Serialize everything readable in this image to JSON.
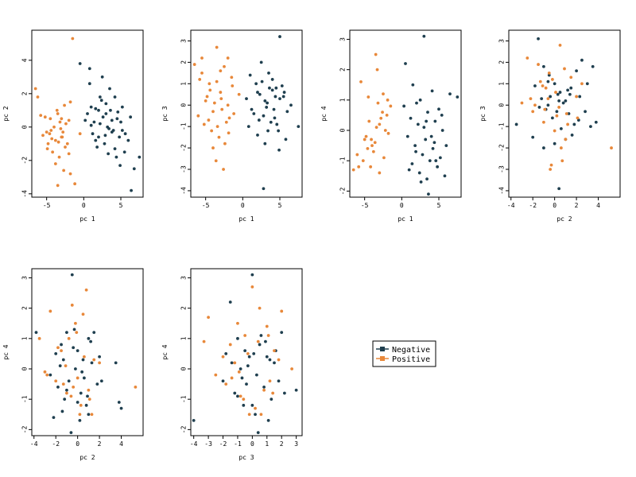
{
  "colors": {
    "negative": "#1f3f4f",
    "positive": "#e8883a"
  },
  "legend": {
    "placement": "center",
    "items": [
      {
        "label": "Negative",
        "color": "#1f3f4f"
      },
      {
        "label": "Positive",
        "color": "#e8883a"
      }
    ]
  },
  "chart_data": [
    {
      "type": "scatter",
      "title": "",
      "xlabel": "pc 1",
      "ylabel": "pc 2",
      "xlim": [
        -7,
        8
      ],
      "ylim": [
        -4.2,
        5.8
      ],
      "xticks": [
        -5,
        0,
        5
      ],
      "yticks": [
        -4,
        -2,
        0,
        2,
        4
      ],
      "series": [
        {
          "name": "Negative",
          "x": [
            -0.5,
            0.8,
            2.5,
            3.5,
            4.2,
            5.2,
            6.3,
            7.5,
            2.0,
            3.0,
            4.5,
            6.8,
            1.2,
            2.2,
            1.6,
            3.8,
            4.8,
            2.8,
            5.5,
            0.2,
            1.0,
            2.6,
            3.2,
            4.0,
            5.0,
            6.0,
            0.5,
            1.8,
            2.4,
            3.6,
            4.4,
            5.6,
            1.4,
            3.0,
            4.6,
            2.0,
            5.2,
            0.8,
            3.4,
            4.2,
            6.4,
            1.0,
            2.2,
            3.8,
            2.9,
            4.9,
            1.6,
            3.3
          ],
          "y": [
            3.8,
            3.5,
            3.0,
            2.3,
            1.8,
            1.2,
            0.6,
            -1.8,
            1.0,
            0.8,
            0.5,
            -2.5,
            -0.4,
            0.2,
            -0.8,
            -0.3,
            -0.6,
            -1.0,
            -1.5,
            0.4,
            1.2,
            0.6,
            0.0,
            -0.2,
            0.3,
            -0.8,
            0.8,
            -1.2,
            1.6,
            1.0,
            -1.8,
            -0.4,
            0.3,
            1.4,
            0.9,
            -0.6,
            -0.2,
            2.6,
            -0.1,
            -1.3,
            -3.8,
            0.1,
            1.8,
            0.4,
            -0.5,
            -2.3,
            1.1,
            -1.6
          ]
        },
        {
          "name": "Positive",
          "x": [
            -1.5,
            -6.5,
            -6.2,
            -4.5,
            -5.0,
            -3.5,
            -3.0,
            -2.5,
            -2.0,
            -4.0,
            -5.5,
            -4.8,
            -3.8,
            -3.2,
            -2.8,
            -4.2,
            -5.2,
            -3.6,
            -2.4,
            -1.8,
            -4.6,
            -3.4,
            -2.6,
            -5.8,
            -4.4,
            -3.0,
            -2.2,
            -3.8,
            -4.9,
            -2.9,
            -3.3,
            -1.2,
            -0.5,
            -2.0,
            -3.1,
            -4.3,
            -1.8,
            -2.7,
            -3.5
          ],
          "y": [
            5.3,
            2.3,
            1.8,
            0.5,
            -0.3,
            0.8,
            -0.6,
            -1.2,
            -1.6,
            0.0,
            -0.5,
            -1.0,
            -0.8,
            0.3,
            -0.3,
            -1.5,
            0.6,
            1.0,
            0.2,
            -2.8,
            -0.4,
            -0.9,
            1.3,
            0.7,
            -0.2,
            0.5,
            -1.0,
            -2.2,
            -1.3,
            -0.6,
            -1.8,
            -3.4,
            -0.4,
            0.4,
            -0.1,
            -0.7,
            1.5,
            -2.6,
            -3.5
          ]
        }
      ]
    },
    {
      "type": "scatter",
      "title": "",
      "xlabel": "pc 1",
      "ylabel": "pc 3",
      "xlim": [
        -7,
        8
      ],
      "ylim": [
        -4.3,
        3.5
      ],
      "xticks": [
        -5,
        0,
        5
      ],
      "yticks": [
        -4,
        -3,
        -2,
        -1,
        0,
        1,
        2,
        3
      ],
      "series": [
        {
          "name": "Negative",
          "x": [
            5.0,
            2.5,
            3.5,
            4.0,
            4.5,
            5.5,
            6.5,
            7.5,
            2.0,
            3.0,
            4.2,
            1.0,
            1.8,
            2.8,
            3.8,
            4.8,
            5.8,
            0.5,
            1.5,
            2.3,
            3.3,
            4.3,
            5.3,
            0.8,
            2.0,
            3.0,
            4.0,
            5.0,
            6.0,
            1.2,
            2.6,
            3.6,
            4.6,
            2.2,
            3.2,
            4.4,
            5.6,
            2.8,
            3.4,
            4.9
          ],
          "y": [
            3.2,
            2.0,
            1.5,
            1.2,
            0.8,
            0.4,
            0.0,
            -1.0,
            0.6,
            0.2,
            -0.2,
            1.4,
            1.0,
            -0.5,
            -0.8,
            -1.2,
            -1.6,
            0.3,
            -0.4,
            0.5,
            0.1,
            -0.6,
            0.9,
            -1.0,
            -1.4,
            -1.8,
            0.7,
            0.3,
            -0.3,
            -0.2,
            1.1,
            0.8,
            -0.9,
            -0.7,
            -0.1,
            0.4,
            0.6,
            -3.9,
            -1.2,
            -2.1
          ]
        },
        {
          "name": "Positive",
          "x": [
            -6.5,
            -5.5,
            -4.5,
            -3.5,
            -2.5,
            -1.5,
            -0.5,
            -5.0,
            -4.0,
            -3.0,
            -2.0,
            -6.0,
            -5.2,
            -4.2,
            -3.2,
            -2.2,
            -1.2,
            -4.8,
            -3.8,
            -2.8,
            -1.8,
            -5.8,
            -4.4,
            -3.4,
            -2.4,
            -1.4,
            -3.6,
            -2.6,
            -4.6,
            -3.0,
            -2.0,
            -4.0,
            -5.5,
            -3.5,
            -2.9,
            -1.9
          ],
          "y": [
            1.9,
            1.5,
            1.0,
            2.7,
            1.8,
            1.3,
            0.5,
            0.2,
            -0.3,
            0.6,
            0.0,
            -0.5,
            -0.9,
            -1.2,
            -1.5,
            -0.8,
            -0.4,
            0.4,
            0.1,
            -0.2,
            -0.6,
            1.2,
            0.7,
            -1.0,
            -1.8,
            0.9,
            -2.6,
            -3.0,
            -0.7,
            1.6,
            2.2,
            -2.0,
            2.2,
            1.1,
            0.3,
            -1.3
          ]
        }
      ]
    },
    {
      "type": "scatter",
      "title": "",
      "xlabel": "pc 1",
      "ylabel": "pc 4",
      "xlim": [
        -7,
        8
      ],
      "ylim": [
        -2.2,
        3.3
      ],
      "xticks": [
        -5,
        0,
        5
      ],
      "yticks": [
        -2,
        -1,
        0,
        1,
        2,
        3
      ],
      "series": [
        {
          "name": "Negative",
          "x": [
            3.0,
            0.5,
            1.5,
            2.5,
            3.5,
            4.5,
            5.5,
            6.5,
            7.5,
            0.8,
            1.8,
            2.8,
            3.8,
            4.8,
            5.8,
            1.2,
            2.2,
            3.2,
            4.2,
            5.2,
            0.3,
            1.4,
            2.4,
            3.4,
            4.4,
            5.4,
            2.0,
            3.0,
            4.0,
            5.0,
            6.0,
            1.0,
            2.6,
            3.6,
            4.6,
            3.3,
            4.1,
            1.9
          ],
          "y": [
            3.1,
            2.2,
            1.5,
            1.0,
            0.6,
            0.3,
            0.0,
            1.2,
            1.1,
            -0.2,
            -0.5,
            -0.8,
            -1.0,
            -1.2,
            -1.5,
            0.4,
            0.2,
            -0.3,
            -0.6,
            -0.9,
            0.8,
            -1.1,
            -1.4,
            -1.6,
            -0.4,
            0.5,
            0.9,
            0.1,
            -0.2,
            0.7,
            -0.5,
            -1.3,
            -1.7,
            -2.1,
            -1.0,
            0.3,
            1.3,
            -0.7
          ]
        },
        {
          "name": "Positive",
          "x": [
            -6.5,
            -5.5,
            -4.5,
            -3.5,
            -2.5,
            -1.5,
            -5.0,
            -4.0,
            -3.0,
            -2.0,
            -6.0,
            -4.8,
            -3.8,
            -2.8,
            -1.8,
            -5.2,
            -4.2,
            -3.2,
            -2.2,
            -4.6,
            -3.6,
            -2.6,
            -3.0,
            -4.4,
            -5.8,
            -3.4,
            -2.4,
            -1.9,
            -4.1,
            -3.3
          ],
          "y": [
            -1.3,
            1.6,
            1.1,
            2.5,
            1.2,
            0.8,
            -0.3,
            -0.5,
            0.2,
            0.5,
            -0.8,
            -0.2,
            -0.7,
            0.4,
            -0.1,
            -1.0,
            -1.2,
            0.9,
            0.0,
            -0.6,
            -0.4,
            0.6,
            -1.4,
            0.3,
            -1.2,
            0.1,
            -0.9,
            1.0,
            -0.3,
            2.0
          ]
        }
      ]
    },
    {
      "type": "scatter",
      "title": "",
      "xlabel": "pc 2",
      "ylabel": "pc 3",
      "xlim": [
        -4.2,
        6.0
      ],
      "ylim": [
        -4.3,
        3.5
      ],
      "xticks": [
        -4,
        -2,
        0,
        2,
        4
      ],
      "yticks": [
        -4,
        -3,
        -2,
        -1,
        0,
        1,
        2,
        3
      ],
      "series": [
        {
          "name": "Negative",
          "x": [
            -1.5,
            -1.0,
            -0.5,
            0.0,
            0.5,
            1.0,
            1.5,
            2.0,
            2.5,
            3.0,
            3.5,
            3.8,
            -3.5,
            -2.0,
            -1.2,
            -0.8,
            -0.2,
            0.3,
            0.8,
            1.3,
            1.8,
            2.3,
            -1.8,
            -0.6,
            0.6,
            1.6,
            2.8,
            -1.4,
            -0.4,
            0.4,
            1.2,
            2.2,
            3.3,
            -1.0,
            0.0,
            1.0,
            0.4,
            -0.6,
            0.2,
            1.4
          ],
          "y": [
            3.1,
            1.8,
            1.4,
            1.0,
            0.6,
            0.2,
            0.8,
            1.6,
            2.1,
            1.0,
            1.8,
            -0.8,
            -0.9,
            -1.5,
            0.3,
            -0.2,
            -0.6,
            0.5,
            0.1,
            -0.4,
            -0.9,
            0.4,
            0.9,
            1.1,
            -1.1,
            -1.4,
            -0.3,
            -0.1,
            0.4,
            0.2,
            0.7,
            -0.7,
            -1.0,
            -2.0,
            -1.8,
            -1.6,
            -3.9,
            0.0,
            -0.3,
            0.5
          ]
        },
        {
          "name": "Positive",
          "x": [
            -2.5,
            -1.5,
            -0.5,
            0.5,
            1.5,
            2.5,
            -3.0,
            -2.0,
            -1.0,
            0.0,
            1.0,
            2.0,
            -0.8,
            0.2,
            1.2,
            -1.3,
            -0.3,
            0.7,
            -1.8,
            -0.9,
            0.1,
            1.1,
            2.1,
            -0.4,
            0.6,
            5.2,
            -2.2,
            -1.1,
            0.9,
            -0.2,
            0.4,
            -0.6
          ],
          "y": [
            2.2,
            1.9,
            1.5,
            2.8,
            1.3,
            1.0,
            0.1,
            -0.3,
            -0.8,
            -1.2,
            -1.6,
            0.4,
            0.8,
            -0.5,
            -0.9,
            1.1,
            -2.8,
            -2.6,
            0.0,
            -0.2,
            0.6,
            -0.4,
            -0.6,
            -3.0,
            -2.0,
            -2.0,
            0.3,
            0.9,
            1.7,
            1.2,
            -0.1,
            0.3
          ]
        }
      ]
    },
    {
      "type": "scatter",
      "title": "",
      "xlabel": "pc 2",
      "ylabel": "pc 4",
      "xlim": [
        -4.2,
        6.0
      ],
      "ylim": [
        -2.2,
        3.3
      ],
      "xticks": [
        -4,
        -2,
        0,
        2,
        4
      ],
      "yticks": [
        -2,
        -1,
        0,
        1,
        2,
        3
      ],
      "series": [
        {
          "name": "Negative",
          "x": [
            -3.8,
            -0.5,
            -2.0,
            -1.5,
            -1.0,
            0.0,
            0.5,
            1.0,
            1.5,
            2.0,
            3.5,
            4.0,
            -2.5,
            -1.8,
            -1.2,
            -0.8,
            -0.2,
            0.3,
            0.8,
            1.3,
            1.8,
            3.8,
            -2.2,
            -1.4,
            -0.6,
            0.2,
            1.0,
            2.2,
            -1.6,
            -0.4,
            0.4,
            1.2,
            -1.0,
            0.0,
            0.6,
            -0.3,
            -1.3,
            0.9
          ],
          "y": [
            1.2,
            3.1,
            0.5,
            0.8,
            1.2,
            0.6,
            0.3,
            1.0,
            1.2,
            0.4,
            0.2,
            -1.3,
            -0.2,
            -0.6,
            -1.0,
            -0.4,
            0.0,
            -0.8,
            -1.2,
            0.2,
            -0.5,
            -1.1,
            -1.6,
            -1.4,
            -2.1,
            -1.7,
            -1.5,
            -0.4,
            0.1,
            0.7,
            -0.1,
            0.9,
            -0.7,
            -1.1,
            -0.3,
            1.3,
            0.3,
            -0.9
          ]
        },
        {
          "name": "Positive",
          "x": [
            -3.5,
            -2.5,
            -1.5,
            -0.5,
            0.5,
            1.5,
            -3.0,
            -2.0,
            -1.0,
            0.0,
            1.0,
            2.0,
            -0.2,
            -0.8,
            0.8,
            -1.3,
            0.3,
            1.3,
            -1.8,
            -0.6,
            0.6,
            5.3,
            -2.8,
            -0.1,
            1.1,
            -1.1,
            0.2,
            -0.4
          ],
          "y": [
            1.0,
            1.9,
            0.6,
            2.1,
            1.8,
            0.3,
            -0.1,
            -0.4,
            -0.8,
            -0.3,
            -0.7,
            0.2,
            1.5,
            1.0,
            2.6,
            -0.5,
            -1.2,
            -1.5,
            0.7,
            -0.9,
            0.4,
            -0.6,
            -0.2,
            1.2,
            -1.0,
            0.1,
            -1.5,
            -0.6
          ]
        }
      ]
    },
    {
      "type": "scatter",
      "title": "",
      "xlabel": "pc 3",
      "ylabel": "pc 4",
      "xlim": [
        -4.2,
        3.4
      ],
      "ylim": [
        -2.2,
        3.3
      ],
      "xticks": [
        -4,
        -3,
        -2,
        -1,
        0,
        1,
        2,
        3
      ],
      "yticks": [
        -2,
        -1,
        0,
        1,
        2,
        3
      ],
      "series": [
        {
          "name": "Negative",
          "x": [
            0.0,
            -1.5,
            -4.0,
            -1.0,
            -0.5,
            0.5,
            1.0,
            1.5,
            2.0,
            3.0,
            -2.0,
            -1.2,
            -0.8,
            -0.2,
            0.3,
            0.8,
            1.3,
            1.8,
            -1.8,
            -0.6,
            0.2,
            1.1,
            -1.4,
            -0.4,
            0.6,
            1.6,
            -1.0,
            0.0,
            0.9,
            -0.3,
            0.4,
            -0.7,
            1.2,
            2.2,
            0.1
          ],
          "y": [
            3.1,
            2.2,
            -1.7,
            1.0,
            0.6,
            0.8,
            0.4,
            0.2,
            1.2,
            -0.7,
            -0.4,
            -0.8,
            0.0,
            0.4,
            -0.2,
            -0.6,
            -1.0,
            -0.4,
            0.5,
            -1.2,
            -1.5,
            -1.7,
            0.2,
            -0.5,
            1.1,
            0.6,
            -0.9,
            -1.2,
            0.9,
            0.1,
            -2.1,
            -0.3,
            0.3,
            -0.8,
            0.5
          ]
        },
        {
          "name": "Positive",
          "x": [
            -3.0,
            -3.3,
            -2.0,
            -1.5,
            -1.0,
            -0.5,
            0.0,
            0.5,
            1.0,
            1.5,
            2.0,
            2.7,
            -2.5,
            -1.8,
            -0.8,
            0.2,
            1.2,
            -1.2,
            -0.2,
            0.8,
            1.8,
            -0.6,
            0.4,
            1.4,
            -1.4,
            0.6,
            -0.3,
            -0.9,
            1.1
          ],
          "y": [
            1.7,
            0.9,
            0.4,
            0.8,
            1.5,
            1.1,
            2.7,
            2.0,
            1.4,
            0.6,
            1.9,
            0.0,
            -0.2,
            -0.5,
            -0.9,
            -1.3,
            -0.4,
            0.2,
            -1.5,
            -0.7,
            0.3,
            -1.0,
            0.9,
            -0.8,
            -0.3,
            -1.5,
            0.5,
            -0.1,
            1.1
          ]
        }
      ]
    }
  ]
}
